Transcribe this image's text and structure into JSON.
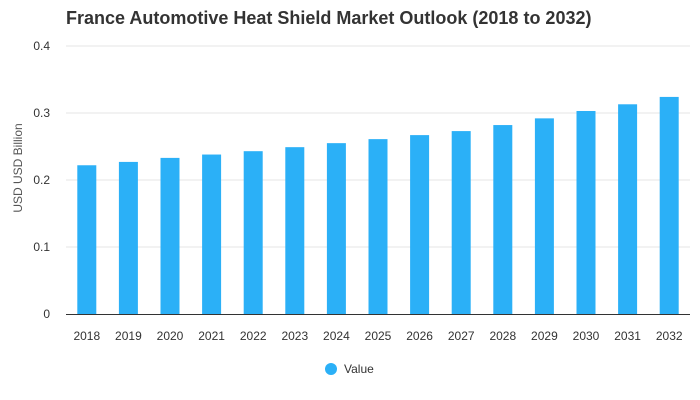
{
  "chart_data": {
    "type": "bar",
    "title": "France Automotive Heat Shield Market Outlook (2018 to 2032)",
    "ylabel": "USD USD Billion",
    "xlabel": "",
    "categories": [
      "2018",
      "2019",
      "2020",
      "2021",
      "2022",
      "2023",
      "2024",
      "2025",
      "2026",
      "2027",
      "2028",
      "2029",
      "2030",
      "2031",
      "2032"
    ],
    "series": [
      {
        "name": "Value",
        "values": [
          0.222,
          0.227,
          0.233,
          0.238,
          0.243,
          0.249,
          0.255,
          0.261,
          0.267,
          0.273,
          0.282,
          0.292,
          0.303,
          0.313,
          0.324
        ]
      }
    ],
    "ylim": [
      0,
      0.4
    ],
    "yticks": [
      "0",
      "0.1",
      "0.2",
      "0.3",
      "0.4"
    ],
    "grid": true,
    "legend_position": "bottom",
    "colors": {
      "bar": "#2BB0F7",
      "grid": "#e6e6e6",
      "axis": "#333333"
    }
  }
}
